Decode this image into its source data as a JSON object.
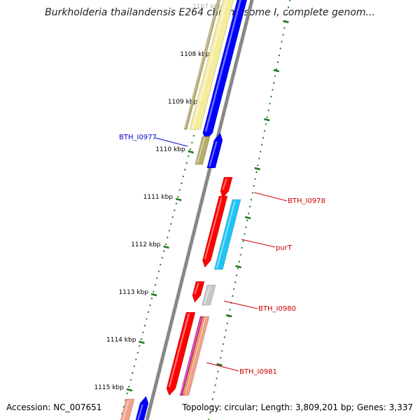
{
  "title": "Burkholderia thailandensis E264 chromosome I, complete genom...",
  "footer": {
    "accession": "Accession: NC_007651",
    "summary": "Topology: circular; Length: 3,809,201 bp; Genes: 3,337"
  },
  "ticks": [
    "1107 kbp",
    "1108 kbp",
    "1109 kbp",
    "1110 kbp",
    "1111 kbp",
    "1112 kbp",
    "1113 kbp",
    "1114 kbp",
    "1115 kbp"
  ],
  "genes": [
    {
      "label": "BTH_I0977",
      "color": "#0000cc"
    },
    {
      "label": "BTH_I0978",
      "color": "#cc0000"
    },
    {
      "label": "purT",
      "color": "#cc0000"
    },
    {
      "label": "BTH_I0980",
      "color": "#cc0000"
    },
    {
      "label": "BTH_I0981",
      "color": "#cc0000"
    }
  ],
  "colors": {
    "backbone": "#888888",
    "tick": "#1a7a1a",
    "forward": "#0000ff",
    "reverse": "#ff0000",
    "khaki": "#b5ac6a",
    "pale_yellow": "#f5ec9c",
    "cyan": "#1ec4f5",
    "gray": "#c8c8c8",
    "salmon": "#f2a08a",
    "magenta": "#d01aa0",
    "orange": "#f59a00"
  }
}
